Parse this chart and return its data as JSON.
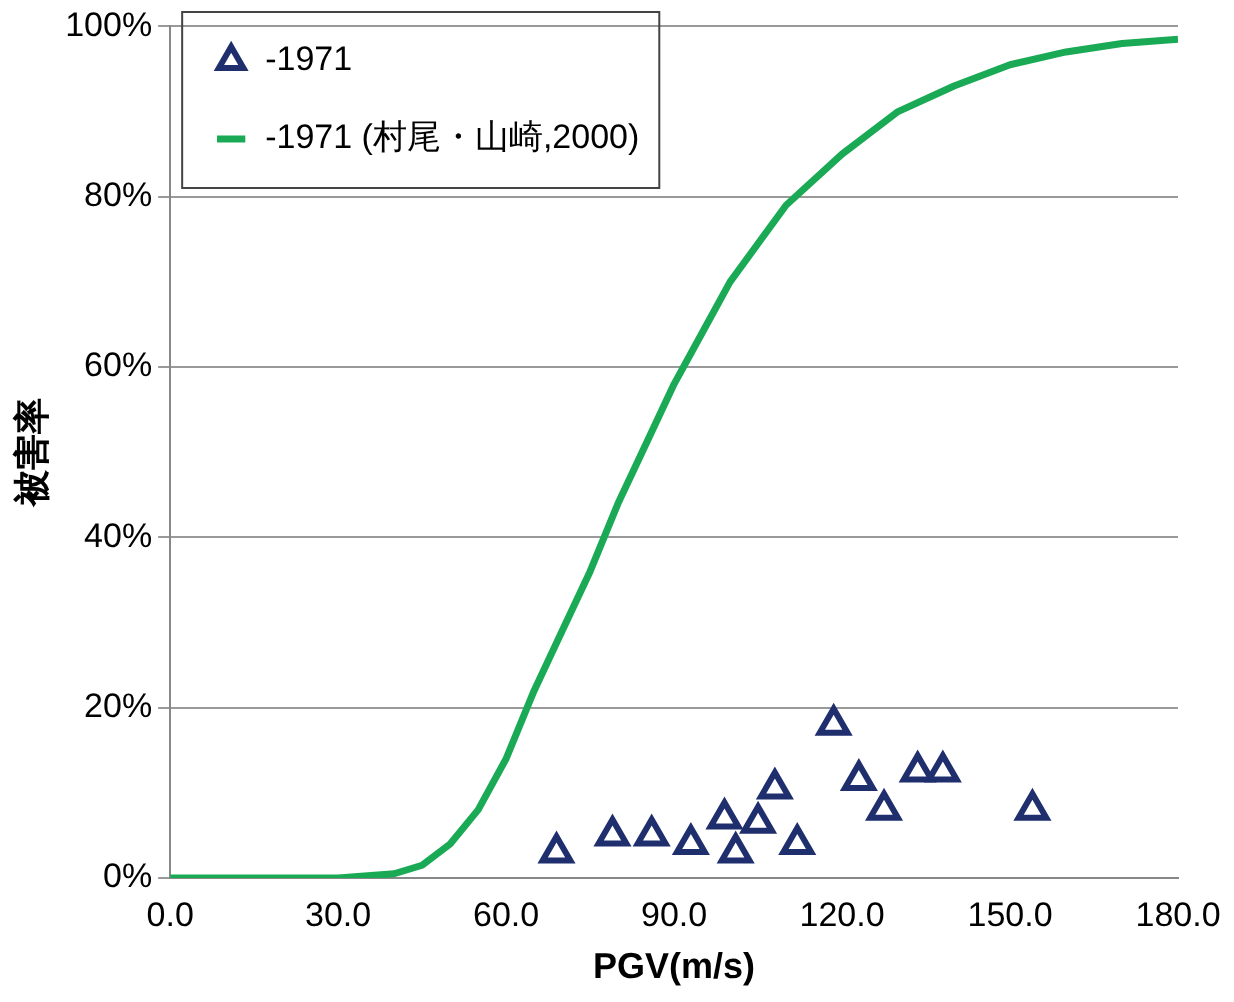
{
  "chart_data": {
    "type": "scatter",
    "xlabel": "PGV(m/s)",
    "ylabel": "被害率",
    "xlim": [
      0,
      180
    ],
    "ylim": [
      0,
      100
    ],
    "xticks": [
      {
        "value": 0,
        "label": "0.0"
      },
      {
        "value": 30,
        "label": "30.0"
      },
      {
        "value": 60,
        "label": "60.0"
      },
      {
        "value": 90,
        "label": "90.0"
      },
      {
        "value": 120,
        "label": "120.0"
      },
      {
        "value": 150,
        "label": "150.0"
      },
      {
        "value": 180,
        "label": "180.0"
      }
    ],
    "yticks": [
      {
        "value": 0,
        "label": "0%"
      },
      {
        "value": 20,
        "label": "20%"
      },
      {
        "value": 40,
        "label": "40%"
      },
      {
        "value": 60,
        "label": "60%"
      },
      {
        "value": 80,
        "label": "80%"
      },
      {
        "value": 100,
        "label": "100%"
      }
    ],
    "grid": "y",
    "legend": "top left",
    "series": [
      {
        "name": "-1971",
        "type": "scatter",
        "marker": "triangle",
        "color": "#1f2f6e",
        "x": [
          69,
          79,
          86,
          93,
          99,
          101,
          105,
          108,
          112,
          118.5,
          123,
          127.5,
          133.5,
          138,
          154
        ],
        "values": [
          3,
          5,
          5,
          4,
          7,
          3,
          6.5,
          10.5,
          4,
          18,
          11.5,
          8,
          12.5,
          12.5,
          8
        ]
      },
      {
        "name": "-1971 (村尾・山崎,2000)",
        "type": "line",
        "marker": "none",
        "line_style": "solid",
        "color": "#1aaa55",
        "x": [
          0,
          30,
          40,
          45,
          50,
          55,
          60,
          65,
          70,
          75,
          80,
          85,
          90,
          95,
          100,
          110,
          120,
          130,
          140,
          150,
          160,
          170,
          180
        ],
        "values": [
          0,
          0,
          0.5,
          1.5,
          4,
          8,
          14,
          22,
          29,
          36,
          44,
          51,
          58,
          64,
          70,
          79,
          85,
          90,
          93,
          95.5,
          97,
          98,
          98.5
        ]
      }
    ]
  }
}
